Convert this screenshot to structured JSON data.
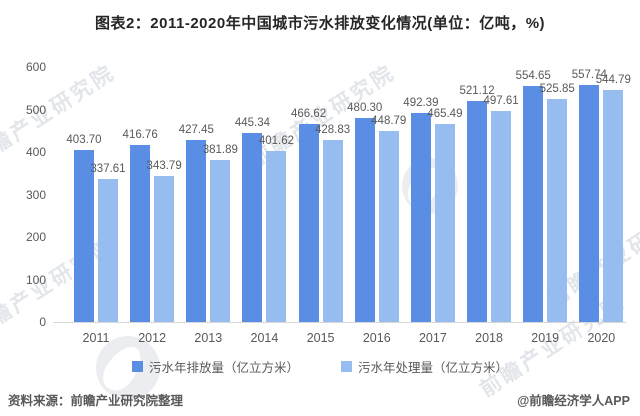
{
  "title": "图表2：2011-2020年中国城市污水排放变化情况(单位：亿吨，%)",
  "chart_data": {
    "type": "bar",
    "title": "图表2：2011-2020年中国城市污水排放变化情况(单位：亿吨，%)",
    "categories": [
      "2011",
      "2012",
      "2013",
      "2014",
      "2015",
      "2016",
      "2017",
      "2018",
      "2019",
      "2020"
    ],
    "series": [
      {
        "name": "污水年排放量（亿立方米）",
        "color": "#5a8ee4",
        "values": [
          403.7,
          416.76,
          427.45,
          445.34,
          466.62,
          480.3,
          492.39,
          521.12,
          554.65,
          557.74
        ]
      },
      {
        "name": "污水年处理量（亿立方米）",
        "color": "#97bcef",
        "values": [
          337.61,
          343.79,
          381.89,
          401.62,
          428.83,
          448.79,
          465.49,
          497.61,
          525.85,
          544.79
        ]
      }
    ],
    "xlabel": "",
    "ylabel": "",
    "ylim": [
      0,
      600
    ],
    "yticks": [
      0,
      100,
      200,
      300,
      400,
      500,
      600
    ],
    "grid": false,
    "legend_position": "bottom",
    "value_labels": true,
    "value_label_decimals": 2
  },
  "footer": {
    "source": "资料来源：前瞻产业研究院整理",
    "credit": "@前瞻经济学人APP"
  },
  "watermark": {
    "text": "前瞻产业研究院"
  }
}
